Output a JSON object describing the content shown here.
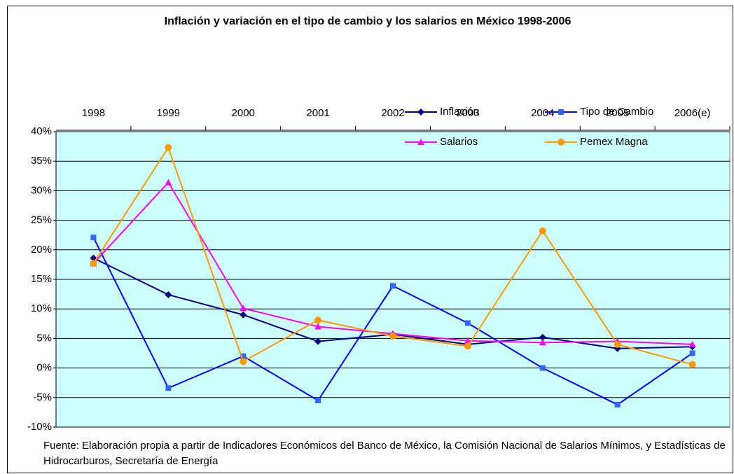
{
  "chart_data": {
    "type": "line",
    "title": "Inflación y variación en el tipo de cambio y los salarios en México 1998-2006",
    "note": "Fuente: Elaboración propia a partir de Indicadores Económicos del Banco de México, la Comisión Nacional de Salarios Mínimos, y Estadísticas de Hidrocarburos, Secretaría de Energía",
    "categories": [
      "1998",
      "1999",
      "2000",
      "2001",
      "2002",
      "2003",
      "2004",
      "2005",
      "2006(e)"
    ],
    "series": [
      {
        "name": "Inflación",
        "color": "#000080",
        "marker": "diamond",
        "values": [
          18.6,
          12.4,
          9.0,
          4.5,
          5.7,
          4.0,
          5.2,
          3.3,
          3.6
        ]
      },
      {
        "name": "Tipo de Cambio",
        "color": "#0000ff",
        "marker": "square",
        "values": [
          22.1,
          -3.4,
          2.0,
          -5.5,
          13.9,
          7.6,
          0.0,
          -6.2,
          2.5
        ]
      },
      {
        "name": "Salarios",
        "color": "#ff00ff",
        "marker": "triangle",
        "values": [
          17.7,
          31.4,
          10.1,
          7.0,
          5.8,
          4.6,
          4.3,
          4.5,
          4.0
        ]
      },
      {
        "name": "Pemex Magna",
        "color": "#ff9900",
        "marker": "circle",
        "values": [
          17.7,
          37.3,
          1.1,
          8.1,
          5.4,
          3.7,
          23.2,
          4.0,
          0.6
        ]
      }
    ],
    "ylim": [
      -10,
      40
    ],
    "yticks": [
      {
        "value": -10,
        "label": "-10%"
      },
      {
        "value": -5,
        "label": "-5%"
      },
      {
        "value": 0,
        "label": "0%"
      },
      {
        "value": 5,
        "label": "5%"
      },
      {
        "value": 10,
        "label": "10%"
      },
      {
        "value": 15,
        "label": "15%"
      },
      {
        "value": 20,
        "label": "20%"
      },
      {
        "value": 25,
        "label": "25%"
      },
      {
        "value": 30,
        "label": "30%"
      },
      {
        "value": 35,
        "label": "35%"
      },
      {
        "value": 40,
        "label": "40%"
      }
    ],
    "grid": true,
    "legend": "top-right",
    "plot_background": "#ccffff"
  }
}
